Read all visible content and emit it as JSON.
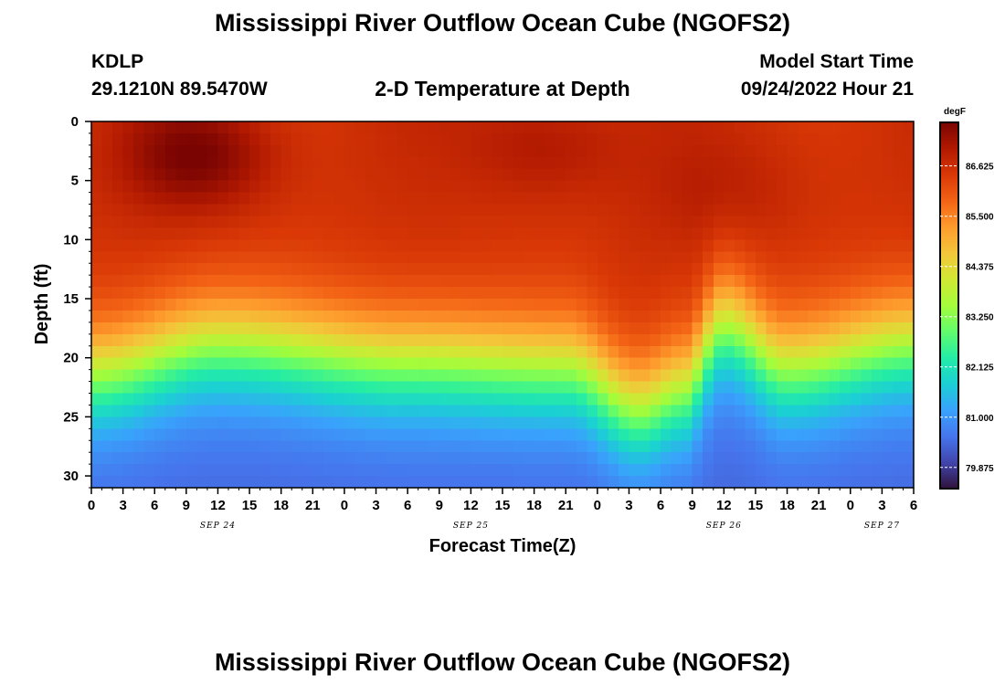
{
  "header": {
    "title": "Mississippi River Outflow Ocean Cube (NGOFS2)",
    "station": "KDLP",
    "coords": "29.1210N  89.5470W",
    "plot_title": "2-D Temperature at Depth",
    "model_start_label": "Model Start Time",
    "model_start_value": "09/24/2022 Hour 21"
  },
  "footer": {
    "title": "Mississippi River Outflow Ocean Cube (NGOFS2)"
  },
  "chart_data": {
    "type": "heatmap",
    "title": "2-D Temperature at Depth",
    "xlabel": "Forecast Time(Z)",
    "ylabel": "Depth (ft)",
    "x_tick_labels": [
      "0",
      "3",
      "6",
      "9",
      "12",
      "15",
      "18",
      "21",
      "0",
      "3",
      "6",
      "9",
      "12",
      "15",
      "18",
      "21",
      "0",
      "3",
      "6",
      "9",
      "12",
      "15",
      "18",
      "21",
      "0",
      "3",
      "6"
    ],
    "x_range_hours": [
      0,
      78
    ],
    "date_labels": [
      {
        "label": "SEP 24",
        "hour": 12
      },
      {
        "label": "SEP 25",
        "hour": 36
      },
      {
        "label": "SEP 26",
        "hour": 60
      },
      {
        "label": "SEP 27",
        "hour": 75
      }
    ],
    "y_ticks": [
      0,
      5,
      10,
      15,
      20,
      25,
      30
    ],
    "y_range_ft": [
      0,
      31
    ],
    "colorbar": {
      "unit": "degF",
      "range": [
        79.4,
        87.6
      ],
      "ticks": [
        "86.625",
        "85.500",
        "84.375",
        "83.250",
        "82.125",
        "81.000",
        "79.875"
      ],
      "colors": [
        "#30123b",
        "#4145ab",
        "#4675ed",
        "#39a2fc",
        "#1bcfd4",
        "#24eca6",
        "#61fc6c",
        "#a4fc3b",
        "#d1e834",
        "#f3c63a",
        "#fe9b2d",
        "#f36315",
        "#d93806",
        "#b11901",
        "#7a0402"
      ]
    },
    "thermocline": [
      {
        "hour": 0,
        "depth_ft": 21.5
      },
      {
        "hour": 12,
        "depth_ft": 19
      },
      {
        "hour": 30,
        "depth_ft": 20.5
      },
      {
        "hour": 45,
        "depth_ft": 21
      },
      {
        "hour": 52,
        "depth_ft": 24.5
      },
      {
        "hour": 56,
        "depth_ft": 23
      },
      {
        "hour": 60,
        "depth_ft": 17.5
      },
      {
        "hour": 66,
        "depth_ft": 21
      },
      {
        "hour": 78,
        "depth_ft": 19
      }
    ],
    "surface_hotspots": [
      {
        "hour": 10,
        "depth_ft": 3,
        "peak_degF": 87.6
      },
      {
        "hour": 43,
        "depth_ft": 2,
        "peak_degF": 87.1
      },
      {
        "hour": 60,
        "depth_ft": 6,
        "peak_degF": 86.9
      }
    ],
    "surface_temp_degF": 86.6,
    "bottom_temp_degF": 80.4
  }
}
